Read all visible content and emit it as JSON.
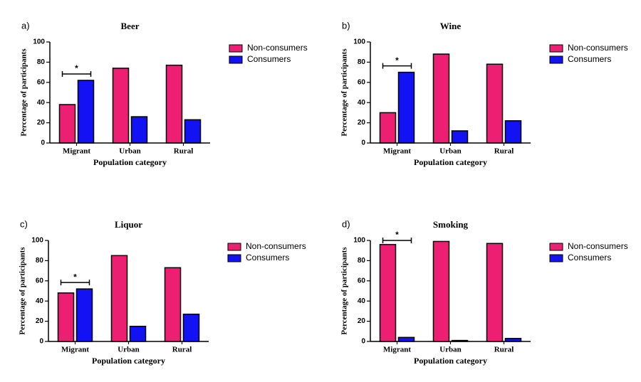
{
  "chart_data": [
    {
      "type": "bar",
      "panel": "a)",
      "title": "Beer",
      "x_label": "Population category",
      "y_label": "Percentage of participants",
      "categories": [
        "Migrant",
        "Urban",
        "Rural"
      ],
      "series": [
        {
          "name": "Non-consumers",
          "color": "#ec1f72",
          "values": [
            38,
            74,
            77
          ]
        },
        {
          "name": "Consumers",
          "color": "#1212f5",
          "values": [
            62,
            26,
            23
          ]
        }
      ],
      "ylim": [
        0,
        100
      ],
      "yticks": [
        0,
        20,
        40,
        60,
        80,
        100
      ],
      "annotation": "*",
      "legend": "right"
    },
    {
      "type": "bar",
      "panel": "b)",
      "title": "Wine",
      "x_label": "Population category",
      "y_label": "Percentage of participants",
      "categories": [
        "Migrant",
        "Urban",
        "Rural"
      ],
      "series": [
        {
          "name": "Non-consumers",
          "color": "#ec1f72",
          "values": [
            30,
            88,
            78
          ]
        },
        {
          "name": "Consumers",
          "color": "#1212f5",
          "values": [
            70,
            12,
            22
          ]
        }
      ],
      "ylim": [
        0,
        100
      ],
      "yticks": [
        0,
        20,
        40,
        60,
        80,
        100
      ],
      "annotation": "*",
      "legend": "right"
    },
    {
      "type": "bar",
      "panel": "c)",
      "title": "Liquor",
      "x_label": "Population category",
      "y_label": "Percentage of participants",
      "categories": [
        "Migrant",
        "Urban",
        "Rural"
      ],
      "series": [
        {
          "name": "Non-consumers",
          "color": "#ec1f72",
          "values": [
            48,
            85,
            73
          ]
        },
        {
          "name": "Consumers",
          "color": "#1212f5",
          "values": [
            52,
            15,
            27
          ]
        }
      ],
      "ylim": [
        0,
        100
      ],
      "yticks": [
        0,
        20,
        40,
        60,
        80,
        100
      ],
      "annotation": "*",
      "legend": "right"
    },
    {
      "type": "bar",
      "panel": "d)",
      "title": "Smoking",
      "x_label": "Population category",
      "y_label": "Percentage of participants",
      "categories": [
        "Migrant",
        "Urban",
        "Rural"
      ],
      "series": [
        {
          "name": "Non-consumers",
          "color": "#ec1f72",
          "values": [
            96,
            99,
            97
          ]
        },
        {
          "name": "Consumers",
          "color": "#1212f5",
          "values": [
            4,
            1,
            3
          ]
        }
      ],
      "ylim": [
        0,
        100
      ],
      "yticks": [
        0,
        20,
        40,
        60,
        80,
        100
      ],
      "annotation": "*",
      "legend": "right"
    }
  ]
}
